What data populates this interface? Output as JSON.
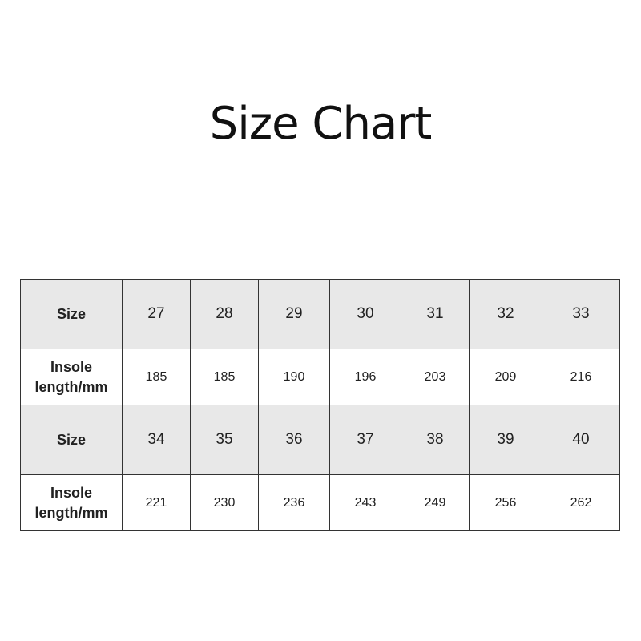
{
  "title": "Size Chart",
  "table": {
    "rows": [
      {
        "label": "Size",
        "values": [
          "27",
          "28",
          "29",
          "30",
          "31",
          "32",
          "33"
        ]
      },
      {
        "label_line1": "Insole",
        "label_line2": "length/mm",
        "values": [
          "185",
          "185",
          "190",
          "196",
          "203",
          "209",
          "216"
        ]
      },
      {
        "label": "Size",
        "values": [
          "34",
          "35",
          "36",
          "37",
          "38",
          "39",
          "40"
        ]
      },
      {
        "label_line1": "Insole",
        "label_line2": "length/mm",
        "values": [
          "221",
          "230",
          "236",
          "243",
          "249",
          "256",
          "262"
        ]
      }
    ]
  }
}
